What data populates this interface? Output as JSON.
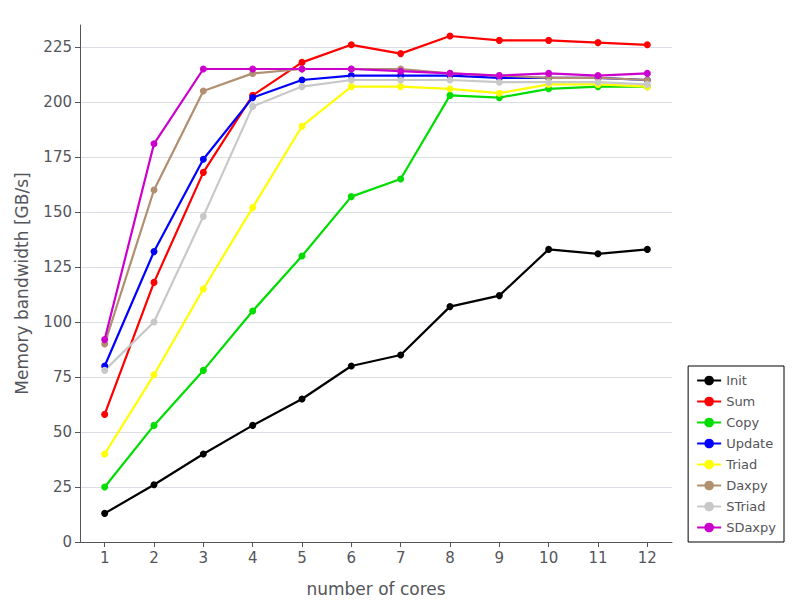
{
  "chart_data": {
    "type": "line",
    "x": [
      1,
      2,
      3,
      4,
      5,
      6,
      7,
      8,
      9,
      10,
      11,
      12
    ],
    "series": [
      {
        "name": "Init",
        "color": "#000000",
        "values": [
          13,
          26,
          40,
          53,
          65,
          80,
          85,
          107,
          112,
          133,
          131,
          133
        ]
      },
      {
        "name": "Sum",
        "color": "#ff0000",
        "values": [
          58,
          118,
          168,
          203,
          218,
          226,
          222,
          230,
          228,
          228,
          227,
          226
        ]
      },
      {
        "name": "Copy",
        "color": "#00dd00",
        "values": [
          25,
          53,
          78,
          105,
          130,
          157,
          165,
          203,
          202,
          206,
          207,
          207
        ]
      },
      {
        "name": "Update",
        "color": "#0000ff",
        "values": [
          80,
          132,
          174,
          202,
          210,
          212,
          212,
          212,
          211,
          211,
          211,
          210
        ]
      },
      {
        "name": "Triad",
        "color": "#ffff00",
        "values": [
          40,
          76,
          115,
          152,
          189,
          207,
          207,
          206,
          204,
          208,
          208,
          207
        ]
      },
      {
        "name": "Daxpy",
        "color": "#b09070",
        "values": [
          90,
          160,
          205,
          213,
          215,
          215,
          215,
          213,
          212,
          211,
          211,
          210
        ]
      },
      {
        "name": "STriad",
        "color": "#c8c8c8",
        "values": [
          78,
          100,
          148,
          198,
          207,
          210,
          210,
          210,
          209,
          209,
          209,
          208
        ]
      },
      {
        "name": "SDaxpy",
        "color": "#cc00cc",
        "values": [
          92,
          181,
          215,
          215,
          215,
          215,
          214,
          213,
          212,
          213,
          212,
          213
        ]
      }
    ],
    "xlabel": "number of cores",
    "ylabel": "Memory bandwidth [GB/s]",
    "xlim": [
      0.5,
      12.5
    ],
    "ylim": [
      0,
      235
    ],
    "xticks": [
      1,
      2,
      3,
      4,
      5,
      6,
      7,
      8,
      9,
      10,
      11,
      12
    ],
    "yticks": [
      0,
      25,
      50,
      75,
      100,
      125,
      150,
      175,
      200,
      225
    ],
    "legend": "lower right",
    "grid": true,
    "marker": "circle"
  }
}
